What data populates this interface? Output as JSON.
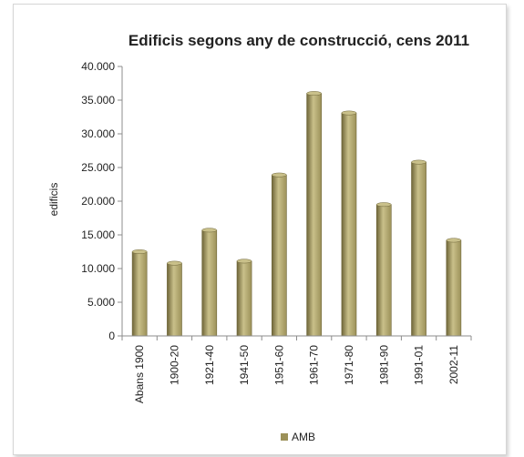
{
  "chart_data": {
    "type": "bar",
    "title": "Edificis segons any de construcció, cens 2011",
    "xlabel": "",
    "ylabel": "edificis",
    "categories": [
      "Abans 1900",
      "1900-20",
      "1921-40",
      "1941-50",
      "1951-60",
      "1961-70",
      "1971-80",
      "1981-90",
      "1991-01",
      "2002-11"
    ],
    "series": [
      {
        "name": "AMB",
        "values": [
          12500,
          10800,
          15700,
          11100,
          23900,
          36000,
          33100,
          19500,
          25800,
          14200
        ]
      }
    ],
    "ylim": [
      0,
      40000
    ],
    "yticks": [
      {
        "value": 0,
        "label": "0"
      },
      {
        "value": 5000,
        "label": "5.000"
      },
      {
        "value": 10000,
        "label": "10.000"
      },
      {
        "value": 15000,
        "label": "15.000"
      },
      {
        "value": 20000,
        "label": "20.000"
      },
      {
        "value": 25000,
        "label": "25.000"
      },
      {
        "value": 30000,
        "label": "30.000"
      },
      {
        "value": 35000,
        "label": "35.000"
      },
      {
        "value": 40000,
        "label": "40.000"
      }
    ],
    "grid": false,
    "legend_position": "bottom",
    "colors": {
      "bar_fill": "#9c9159",
      "bar_light": "#c9c08a",
      "bar_dark": "#6e6538",
      "axis": "#8c8c8c"
    }
  }
}
